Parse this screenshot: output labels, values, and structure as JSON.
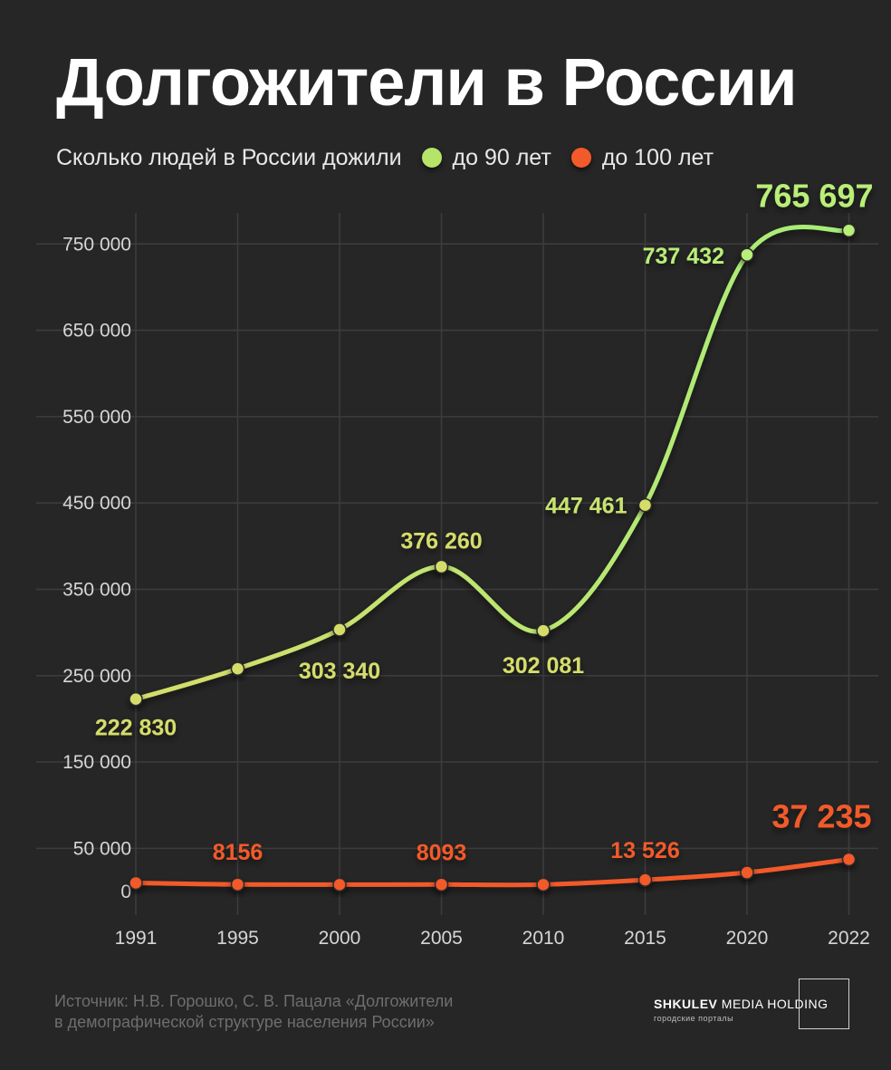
{
  "title": "Долгожители в России",
  "legend": {
    "intro": "Сколько людей в России дожили",
    "items": [
      {
        "label": "до 90 лет",
        "color": "#b6e36a"
      },
      {
        "label": "до 100 лет",
        "color": "#f25a2a"
      }
    ]
  },
  "chart_data": {
    "type": "line",
    "x": [
      "1991",
      "1995",
      "2000",
      "2005",
      "2010",
      "2015",
      "2020",
      "2022"
    ],
    "ylim": [
      0,
      800000
    ],
    "yticks": [
      0,
      50000,
      150000,
      250000,
      350000,
      450000,
      550000,
      650000,
      750000
    ],
    "ytick_labels": [
      "0",
      "50 000",
      "150 000",
      "250 000",
      "350 000",
      "450 000",
      "550 000",
      "650 000",
      "750 000"
    ],
    "grid": true,
    "smooth": true,
    "series": [
      {
        "name": "до 90 лет",
        "color": "#b6e36a",
        "values": [
          222830,
          258000,
          303340,
          376260,
          302081,
          447461,
          737432,
          765697
        ],
        "data_labels": [
          "222 830",
          "",
          "303 340",
          "376 260",
          "302 081",
          "447 461",
          "737 432",
          "765 697"
        ]
      },
      {
        "name": "до 100 лет",
        "color": "#f25a2a",
        "values": [
          10000,
          8156,
          8000,
          8093,
          8000,
          13526,
          22000,
          37235
        ],
        "data_labels": [
          "",
          "8156",
          "",
          "8093",
          "",
          "13 526",
          "",
          "37 235"
        ]
      }
    ]
  },
  "source": {
    "line1": "Источник: Н.В. Горошко, С. В. Пацала «Долгожители",
    "line2": "в демографической структуре населения России»"
  },
  "logo": {
    "name_bold": "SHKULEV",
    "name_rest": "MEDIA HOLDING",
    "subtitle": "городские порталы"
  }
}
